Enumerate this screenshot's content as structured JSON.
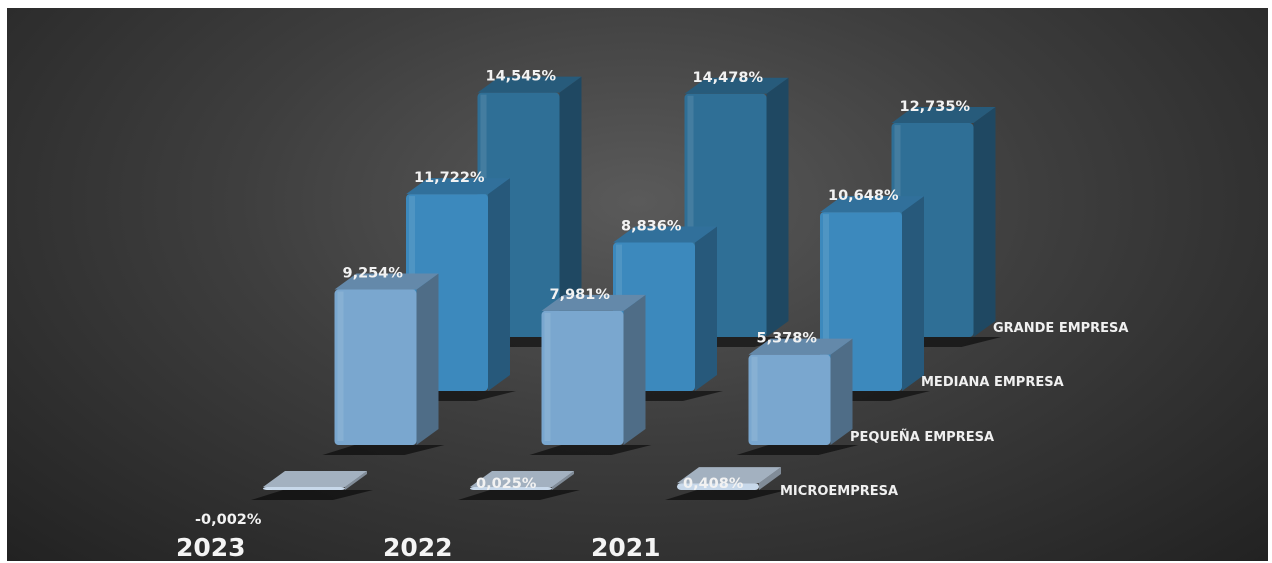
{
  "chart_data": {
    "type": "bar",
    "subtype": "3d-column",
    "categories": [
      "2023",
      "2022",
      "2021"
    ],
    "series": [
      {
        "name": "MICROEMPRESA",
        "values": [
          -0.002,
          0.025,
          0.408
        ],
        "labels": [
          "-0,002%",
          "0,025%",
          "0,408%"
        ],
        "color": "#c7d8ea"
      },
      {
        "name": "PEQUEÑA EMPRESA",
        "values": [
          9.254,
          7.981,
          5.378
        ],
        "labels": [
          "9,254%",
          "7,981%",
          "5,378%"
        ],
        "color": "#7aa7cf"
      },
      {
        "name": "MEDIANA EMPRESA",
        "values": [
          11.722,
          8.836,
          10.648
        ],
        "labels": [
          "11,722%",
          "8,836%",
          "10,648%"
        ],
        "color": "#3c89bd"
      },
      {
        "name": "GRANDE EMPRESA",
        "values": [
          14.545,
          14.478,
          12.735
        ],
        "labels": [
          "14,545%",
          "14,478%",
          "12,735%"
        ],
        "color": "#2f6f96"
      }
    ],
    "background": "#3a3a3a",
    "grid": false,
    "legend": "series labels at right of each depth row"
  }
}
